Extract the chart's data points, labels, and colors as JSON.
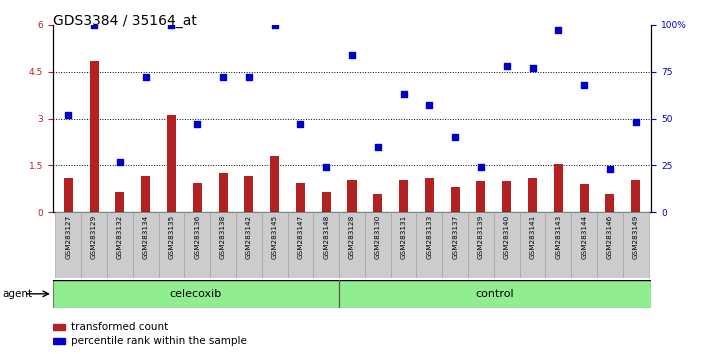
{
  "title": "GDS3384 / 35164_at",
  "samples": [
    "GSM283127",
    "GSM283129",
    "GSM283132",
    "GSM283134",
    "GSM283135",
    "GSM283136",
    "GSM283138",
    "GSM283142",
    "GSM283145",
    "GSM283147",
    "GSM283148",
    "GSM283128",
    "GSM283130",
    "GSM283131",
    "GSM283133",
    "GSM283137",
    "GSM283139",
    "GSM283140",
    "GSM283141",
    "GSM283143",
    "GSM283144",
    "GSM283146",
    "GSM283149"
  ],
  "bar_values": [
    1.1,
    4.85,
    0.65,
    1.15,
    3.1,
    0.95,
    1.25,
    1.15,
    1.8,
    0.95,
    0.65,
    1.05,
    0.6,
    1.05,
    1.1,
    0.8,
    1.0,
    1.0,
    1.1,
    1.55,
    0.9,
    0.6,
    1.05
  ],
  "scatter_values": [
    52,
    100,
    27,
    72,
    100,
    47,
    72,
    72,
    100,
    47,
    24,
    84,
    35,
    63,
    57,
    40,
    24,
    78,
    77,
    97,
    68,
    23,
    48
  ],
  "bar_color": "#b22222",
  "scatter_color": "#0000cc",
  "ylim_left": [
    0,
    6
  ],
  "ylim_right": [
    0,
    100
  ],
  "yticks_left": [
    0,
    1.5,
    3.0,
    4.5,
    6.0
  ],
  "ytick_labels_left": [
    "0",
    "1.5",
    "3",
    "4.5",
    "6"
  ],
  "yticks_right": [
    0,
    25,
    50,
    75,
    100
  ],
  "ytick_labels_right": [
    "0",
    "25",
    "50",
    "75",
    "100%"
  ],
  "hlines": [
    1.5,
    3.0,
    4.5
  ],
  "celecoxib_count": 11,
  "control_count": 12,
  "agent_label": "agent",
  "celecoxib_label": "celecoxib",
  "control_label": "control",
  "legend_bar": "transformed count",
  "legend_scatter": "percentile rank within the sample",
  "bg_color": "#cccccc",
  "celecoxib_color": "#90ee90",
  "control_color": "#90ee90",
  "title_fontsize": 10,
  "tick_fontsize": 6.5,
  "bar_width": 0.35
}
